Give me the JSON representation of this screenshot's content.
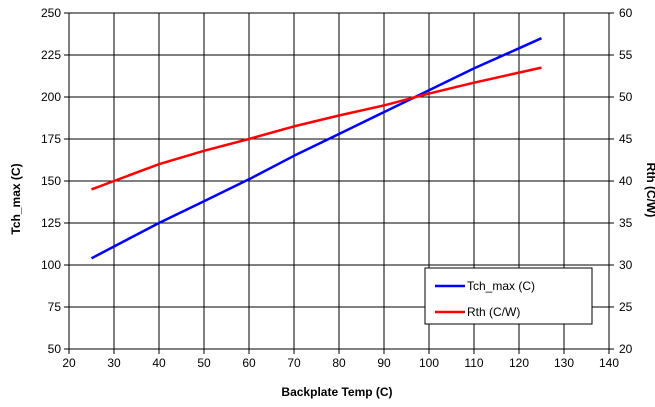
{
  "chart_data": {
    "type": "line",
    "xlabel": "Backplate Temp (C)",
    "ylabel": "Tch_max (C)",
    "y2label": "Rth (C/W)",
    "xlim": [
      20,
      140
    ],
    "ylim": [
      50,
      250
    ],
    "y2lim": [
      20,
      60
    ],
    "x_ticks": [
      20,
      30,
      40,
      50,
      60,
      70,
      80,
      90,
      100,
      110,
      120,
      130,
      140
    ],
    "y_ticks": [
      50,
      75,
      100,
      125,
      150,
      175,
      200,
      225,
      250
    ],
    "y2_ticks": [
      20,
      25,
      30,
      35,
      40,
      45,
      50,
      55,
      60
    ],
    "grid": true,
    "legend_position": "bottom-right",
    "series": [
      {
        "name": "Tch_max (C)",
        "axis": "left",
        "color": "#0000ff",
        "x": [
          25,
          30,
          40,
          50,
          60,
          70,
          80,
          90,
          100,
          110,
          120,
          125
        ],
        "values": [
          104,
          111,
          125,
          138,
          151,
          165,
          178,
          191,
          204,
          217,
          229,
          235
        ]
      },
      {
        "name": "Rth (C/W)",
        "axis": "right",
        "color": "#ff0000",
        "x": [
          25,
          30,
          40,
          50,
          60,
          70,
          80,
          90,
          100,
          110,
          120,
          125
        ],
        "values": [
          39.0,
          40.0,
          42.0,
          43.6,
          45.0,
          46.5,
          47.8,
          49.0,
          50.4,
          51.7,
          52.9,
          53.5
        ]
      }
    ]
  }
}
